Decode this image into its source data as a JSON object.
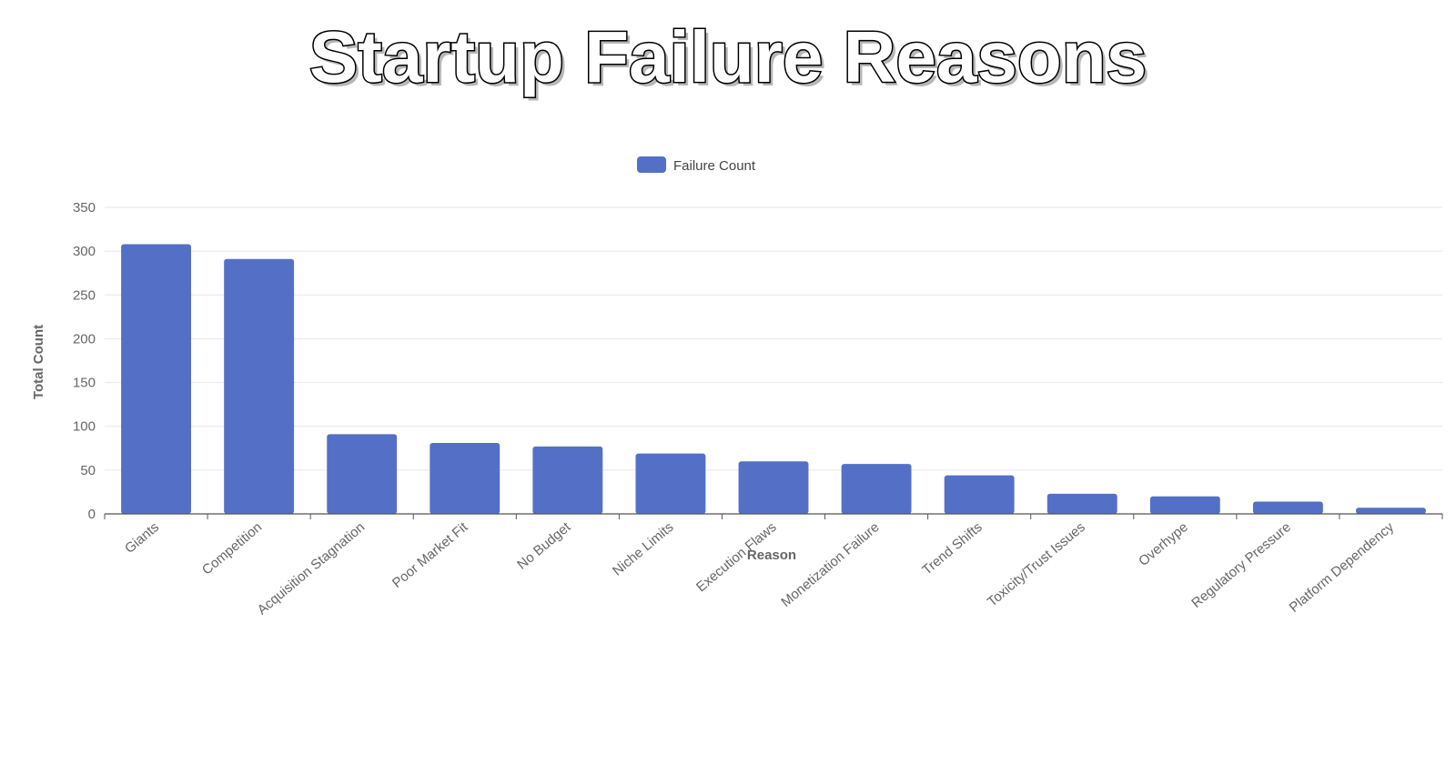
{
  "title": "Startup Failure Reasons",
  "chart_data": {
    "type": "bar",
    "categories": [
      "Giants",
      "Competition",
      "Acquisition Stagnation",
      "Poor Market Fit",
      "No Budget",
      "Niche Limits",
      "Execution Flaws",
      "Monetization Failure",
      "Trend Shifts",
      "Toxicity/Trust Issues",
      "Overhype",
      "Regulatory Pressure",
      "Platform Dependency"
    ],
    "series": [
      {
        "name": "Failure Count",
        "values": [
          308,
          291,
          91,
          81,
          77,
          69,
          60,
          57,
          44,
          23,
          20,
          14,
          7
        ]
      }
    ],
    "xlabel": "Reason",
    "ylabel": "Total Count",
    "ylim": [
      0,
      350
    ],
    "yticks": [
      0,
      50,
      100,
      150,
      200,
      250,
      300,
      350
    ],
    "grid": true,
    "legend_position": "top-center",
    "colors": {
      "bar": "#5470c6",
      "grid": "#e6e6e6",
      "axis": "#555555"
    }
  }
}
